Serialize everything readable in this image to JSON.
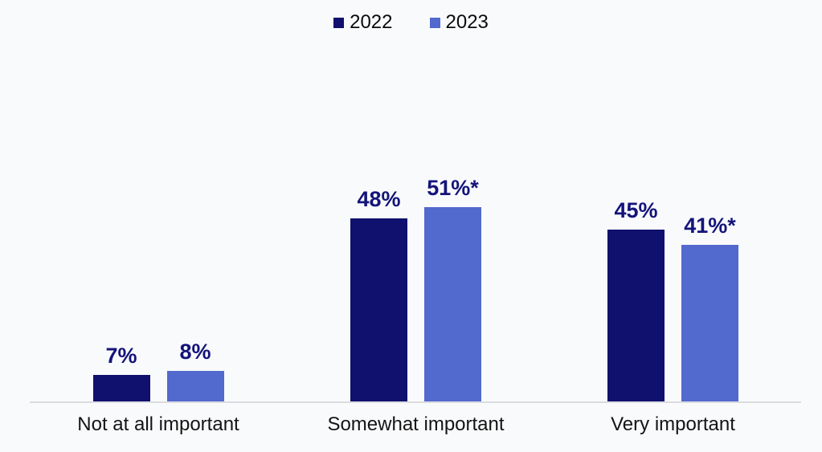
{
  "chart_data": {
    "type": "bar",
    "title": "",
    "categories": [
      "Not at all important",
      "Somewhat important",
      "Very important"
    ],
    "series": [
      {
        "name": "2022",
        "color": "#10106E",
        "values": [
          7,
          48,
          45
        ],
        "labels": [
          "7%",
          "48%",
          "45%"
        ]
      },
      {
        "name": "2023",
        "color": "#5269CD",
        "values": [
          8,
          51,
          41
        ],
        "labels": [
          "8%",
          "51%*",
          "41%*"
        ]
      }
    ],
    "value_unit": "%",
    "grid": false,
    "legend_position": "top-center",
    "colors": {
      "background": "#F9FAFC",
      "axis_line": "#DBDCE0",
      "data_label": "#14147A",
      "category_label": "#141414",
      "legend_text": "#0B0B0B"
    }
  }
}
